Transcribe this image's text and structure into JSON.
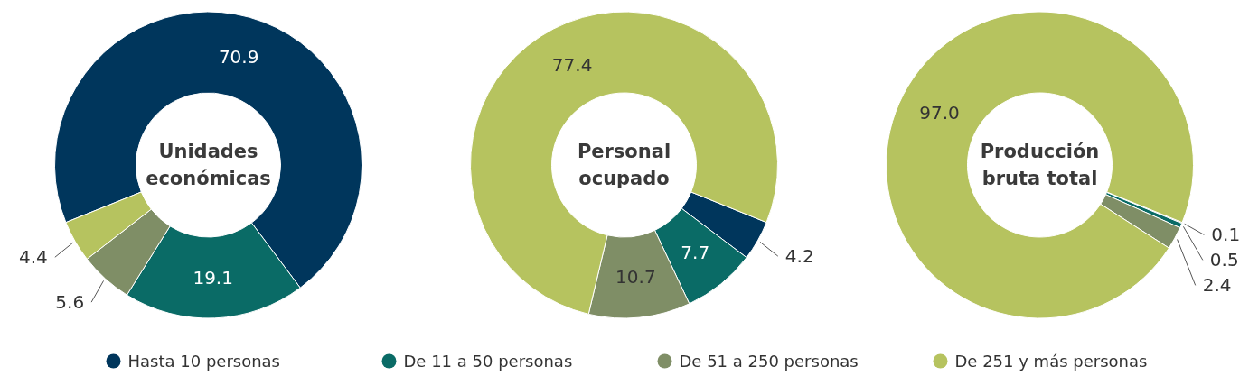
{
  "chart_data": [
    {
      "type": "donut",
      "title": "Unidades económicas",
      "categories": [
        "Hasta 10 personas",
        "De 11 a 50 personas",
        "De 51 a 250 personas",
        "De 251 y más personas"
      ],
      "values": [
        70.9,
        19.1,
        5.6,
        4.4
      ],
      "value_labels": [
        "70.9",
        "19.1",
        "5.6",
        "4.4"
      ],
      "colors": [
        "#00365c",
        "#0a6b66",
        "#7f8e66",
        "#b6c35f"
      ],
      "legend": "bottom"
    },
    {
      "type": "donut",
      "title": "Personal ocupado",
      "categories": [
        null,
        null,
        null,
        null
      ],
      "values": [
        4.2,
        7.7,
        10.7,
        77.4
      ],
      "value_labels": [
        "4.2",
        "7.7",
        "10.7",
        "77.4"
      ],
      "colors": [
        "#00365c",
        "#0a6b66",
        "#7f8e66",
        "#b6c35f"
      ]
    },
    {
      "type": "donut",
      "title": "Producción bruta total",
      "categories": [
        null,
        null,
        null,
        null
      ],
      "values": [
        0.1,
        0.5,
        2.4,
        97.0
      ],
      "value_labels": [
        "0.1",
        "0.5",
        "2.4",
        "97.0"
      ],
      "colors": [
        "#00365c",
        "#0a6b66",
        "#7f8e66",
        "#b6c35f"
      ]
    }
  ]
}
